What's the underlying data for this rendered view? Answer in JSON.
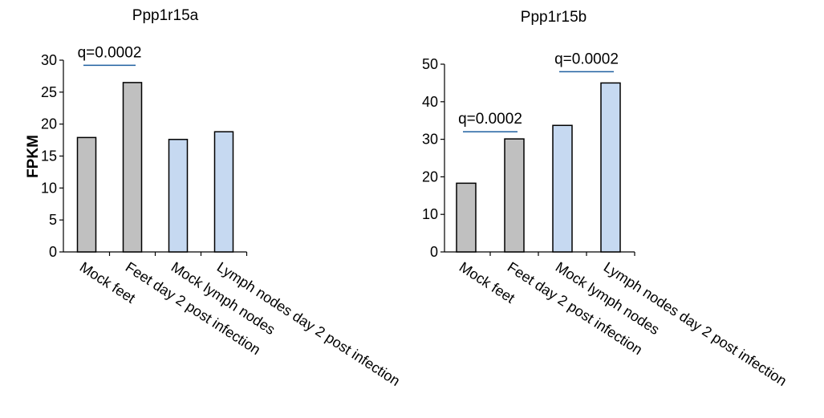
{
  "chart_data": [
    {
      "type": "bar",
      "title": "Ppp1r15a",
      "ylabel": "FPKM",
      "xlabel": "",
      "categories": [
        "Mock feet",
        "Feet day 2 post infection",
        "Mock lymph nodes",
        "Lymph nodes day 2 post infection"
      ],
      "values": [
        17.9,
        26.5,
        17.6,
        18.8
      ],
      "bar_colors": [
        "#c0c0c0",
        "#c0c0c0",
        "#c6d9f1",
        "#c6d9f1"
      ],
      "ylim": [
        0,
        30
      ],
      "yticks": [
        0,
        5,
        10,
        15,
        20,
        25,
        30
      ],
      "grid": false,
      "annotations": [
        {
          "text": "q=0.0002",
          "from": 0,
          "to": 1,
          "line_y": 29.2,
          "color": "#1f5fa0"
        }
      ]
    },
    {
      "type": "bar",
      "title": "Ppp1r15b",
      "ylabel": "",
      "xlabel": "",
      "categories": [
        "Mock feet",
        "Feet day 2 post infection",
        "Mock lymph nodes",
        "Lymph nodes day 2 post infection"
      ],
      "values": [
        18.3,
        30.1,
        33.7,
        45.0
      ],
      "bar_colors": [
        "#c0c0c0",
        "#c0c0c0",
        "#c6d9f1",
        "#c6d9f1"
      ],
      "ylim": [
        0,
        50
      ],
      "yticks": [
        0,
        10,
        20,
        30,
        40,
        50
      ],
      "grid": false,
      "annotations": [
        {
          "text": "q=0.0002",
          "from": 0,
          "to": 1,
          "line_y": 32.0,
          "color": "#1f5fa0"
        },
        {
          "text": "q=0.0002",
          "from": 2,
          "to": 3,
          "line_y": 48.0,
          "color": "#1f5fa0"
        }
      ]
    }
  ]
}
